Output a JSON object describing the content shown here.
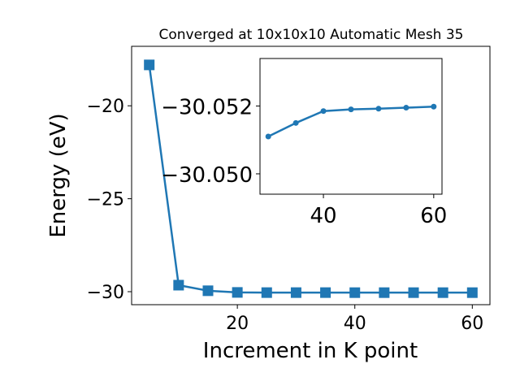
{
  "chart_data": [
    {
      "type": "line",
      "title": "Converged at 10x10x10 Automatic Mesh 35",
      "xlabel": "Increment in K point",
      "ylabel": "Energy (eV)",
      "xlim": [
        2,
        63
      ],
      "ylim": [
        -30.7,
        -16.8
      ],
      "xticks": [
        20,
        40,
        60
      ],
      "yticks": [
        -20,
        -25,
        -30
      ],
      "xtick_labels": [
        "20",
        "40",
        "60"
      ],
      "ytick_labels": [
        "−20",
        "−25",
        "−30"
      ],
      "marker": "square",
      "color": "#1f77b4",
      "grid": false,
      "series": [
        {
          "x": [
            5,
            10,
            15,
            20,
            25,
            30,
            35,
            40,
            45,
            50,
            55,
            60
          ],
          "y": [
            -17.8,
            -29.65,
            -29.95,
            -30.04,
            -30.05,
            -30.05,
            -30.05,
            -30.052,
            -30.052,
            -30.052,
            -30.052,
            -30.052
          ]
        }
      ]
    },
    {
      "type": "line",
      "inset": true,
      "xlim": [
        28.5,
        61.5
      ],
      "ylim": [
        -30.0494,
        -30.0534
      ],
      "xticks": [
        40,
        60
      ],
      "yticks": [
        -30.052,
        -30.05
      ],
      "xtick_labels": [
        "40",
        "60"
      ],
      "ytick_labels": [
        "−30.052",
        "−30.050"
      ],
      "marker": "circle",
      "color": "#1f77b4",
      "grid": false,
      "series": [
        {
          "x": [
            30,
            35,
            40,
            45,
            50,
            55,
            60
          ],
          "y": [
            -30.0511,
            -30.0515,
            -30.05185,
            -30.0519,
            -30.05192,
            -30.05195,
            -30.05198
          ]
        }
      ]
    }
  ]
}
